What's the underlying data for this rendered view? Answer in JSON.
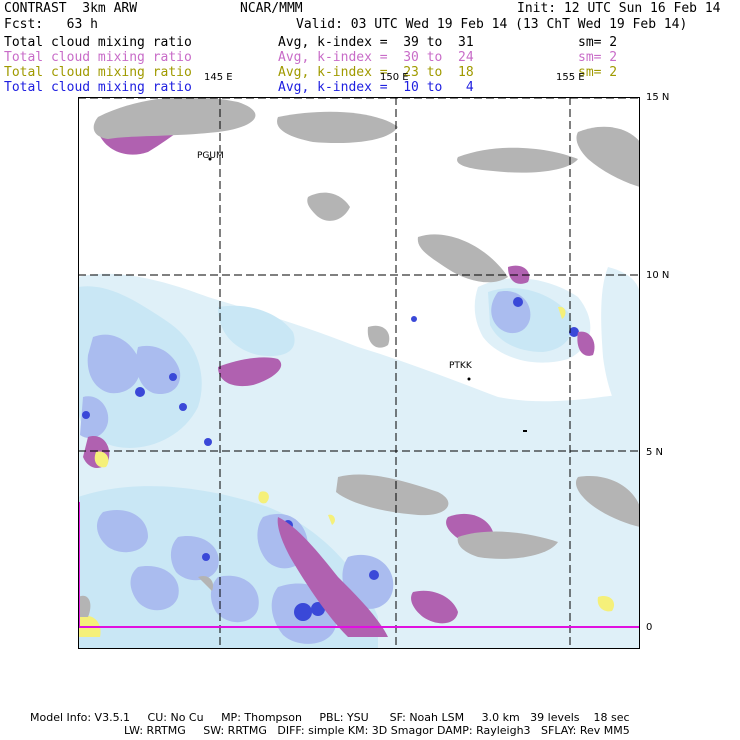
{
  "header": {
    "model": "CONTRAST  3km ARW",
    "org": "NCAR/MMM",
    "init": "Init: 12 UTC Sun 16 Feb 14",
    "fcst": "Fcst:   63 h",
    "valid": "Valid: 03 UTC Wed 19 Feb 14 (13 ChT Wed 19 Feb 14)"
  },
  "fields": [
    {
      "name": "Total cloud mixing ratio",
      "avg": "Avg, k-index =  39 to  31",
      "sm": "sm= 2",
      "color": "#000000"
    },
    {
      "name": "Total cloud mixing ratio",
      "avg": "Avg, k-index =  30 to  24",
      "sm": "sm= 2",
      "color": "#c86cc8"
    },
    {
      "name": "Total cloud mixing ratio",
      "avg": "Avg, k-index =  23 to  18",
      "sm": "sm= 2",
      "color": "#a09a00"
    },
    {
      "name": "Total cloud mixing ratio",
      "avg": "Avg, k-index =  10 to   4",
      "sm": "",
      "color": "#2020e0"
    }
  ],
  "map": {
    "lon_labels": [
      "145 E",
      "150 E",
      "155 E"
    ],
    "lat_labels": [
      "15 N",
      "10 N",
      "5 N",
      "0"
    ],
    "stations": [
      "PGUM",
      "PTKK"
    ]
  },
  "footer": {
    "line1": "Model Info: V3.5.1     CU: No Cu     MP: Thompson     PBL: YSU      SF: Noah LSM     3.0 km   39 levels    18 sec",
    "line2": "LW: RRTMG     SW: RRTMG   DIFF: simple KM: 3D Smagor DAMP: Rayleigh3   SFLAY: Rev MM5"
  }
}
